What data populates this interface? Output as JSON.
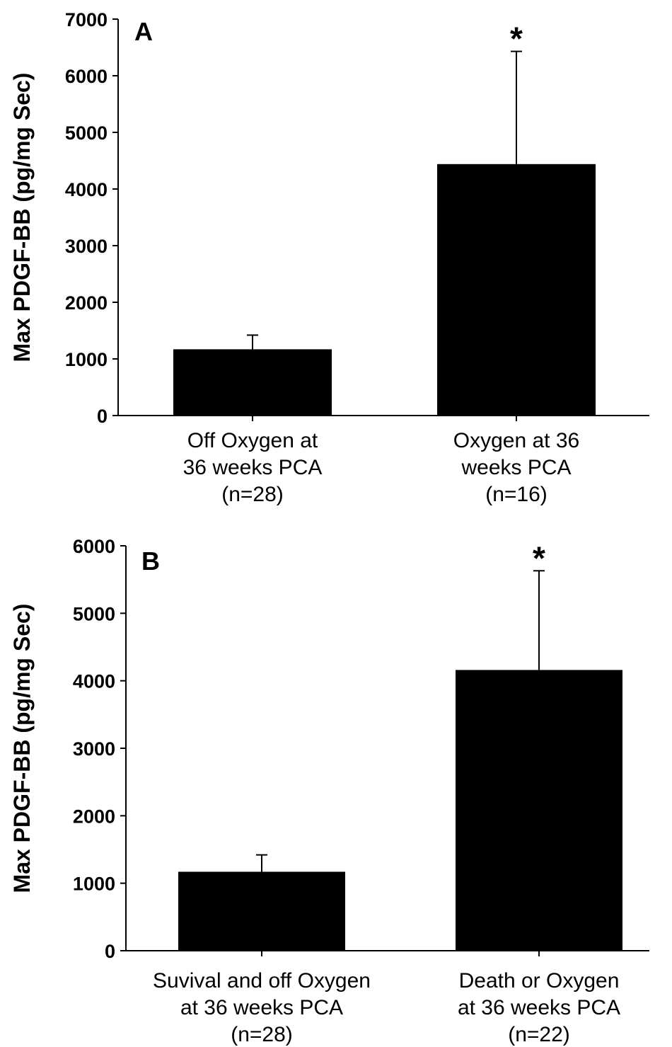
{
  "chart_data": [
    {
      "type": "bar",
      "panel": "A",
      "ylabel": "Max PDGF-BB (pg/mg Sec)",
      "ylim": [
        0,
        7000
      ],
      "yticks": [
        "0",
        "1000",
        "2000",
        "3000",
        "4000",
        "5000",
        "6000",
        "7000"
      ],
      "categories": [
        [
          "Off Oxygen at",
          "36 weeks PCA",
          "(n=28)"
        ],
        [
          "Oxygen at 36",
          "weeks PCA",
          "(n=16)"
        ]
      ],
      "values": [
        1170,
        4440
      ],
      "error_upper": [
        1420,
        6430
      ],
      "significance": [
        "",
        "*"
      ],
      "colors": {
        "bar": "#000000",
        "axis": "#000000"
      }
    },
    {
      "type": "bar",
      "panel": "B",
      "ylabel": "Max PDGF-BB (pg/mg Sec)",
      "ylim": [
        0,
        6000
      ],
      "yticks": [
        "0",
        "1000",
        "2000",
        "3000",
        "4000",
        "5000",
        "6000"
      ],
      "categories": [
        [
          "Suvival and off Oxygen",
          "at 36 weeks PCA",
          "(n=28)"
        ],
        [
          "Death or Oxygen",
          "at 36 weeks PCA",
          "(n=22)"
        ]
      ],
      "values": [
        1170,
        4160
      ],
      "error_upper": [
        1420,
        5630
      ],
      "significance": [
        "",
        "*"
      ],
      "colors": {
        "bar": "#000000",
        "axis": "#000000"
      }
    }
  ]
}
